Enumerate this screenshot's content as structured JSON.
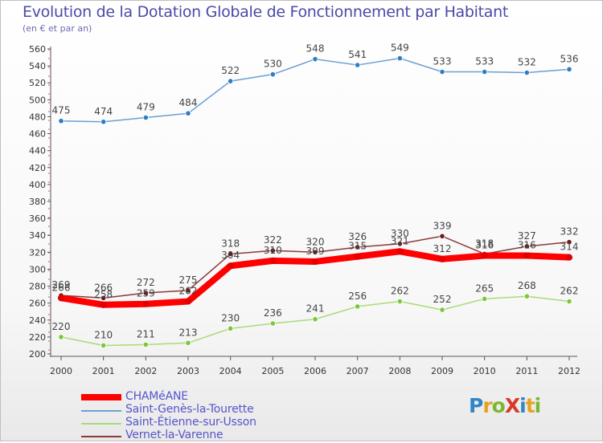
{
  "title": "Evolution de la Dotation Globale de Fonctionnement par Habitant",
  "subtitle": "(en € et par an)",
  "logo": {
    "text": "ProXiti",
    "colors": [
      "#2e86c8",
      "#e8a020",
      "#7ab830",
      "#d83a2a",
      "#2e86c8",
      "#e8a020",
      "#7ab830"
    ]
  },
  "chart_data": {
    "type": "line",
    "x": [
      "2000",
      "2001",
      "2002",
      "2003",
      "2004",
      "2005",
      "2006",
      "2007",
      "2008",
      "2009",
      "2010",
      "2011",
      "2012"
    ],
    "ylim": [
      200,
      560
    ],
    "yticks": [
      200,
      220,
      240,
      260,
      280,
      300,
      320,
      340,
      360,
      380,
      400,
      420,
      440,
      460,
      480,
      500,
      520,
      540,
      560
    ],
    "grid": false,
    "legend_placement": "bottom-left",
    "series": [
      {
        "name": "CHAMéANE",
        "color": "#ff0000",
        "values": [
          266,
          258,
          259,
          262,
          304,
          310,
          309,
          315,
          321,
          312,
          316,
          316,
          314
        ]
      },
      {
        "name": "Saint-Genès-la-Tourette",
        "color": "#6b9fd4",
        "marker": "#2e7ec4",
        "values": [
          475,
          474,
          479,
          484,
          522,
          530,
          548,
          541,
          549,
          533,
          533,
          532,
          536
        ]
      },
      {
        "name": "Saint-Étienne-sur-Usson",
        "color": "#a8dc78",
        "marker": "#7bc83a",
        "values": [
          220,
          210,
          211,
          213,
          230,
          236,
          241,
          256,
          262,
          252,
          265,
          268,
          262
        ]
      },
      {
        "name": "Vernet-la-Varenne",
        "color": "#8a3a3a",
        "marker": "#6a1a1a",
        "values": [
          269,
          266,
          272,
          275,
          318,
          322,
          320,
          326,
          330,
          339,
          318,
          327,
          332
        ]
      }
    ]
  }
}
